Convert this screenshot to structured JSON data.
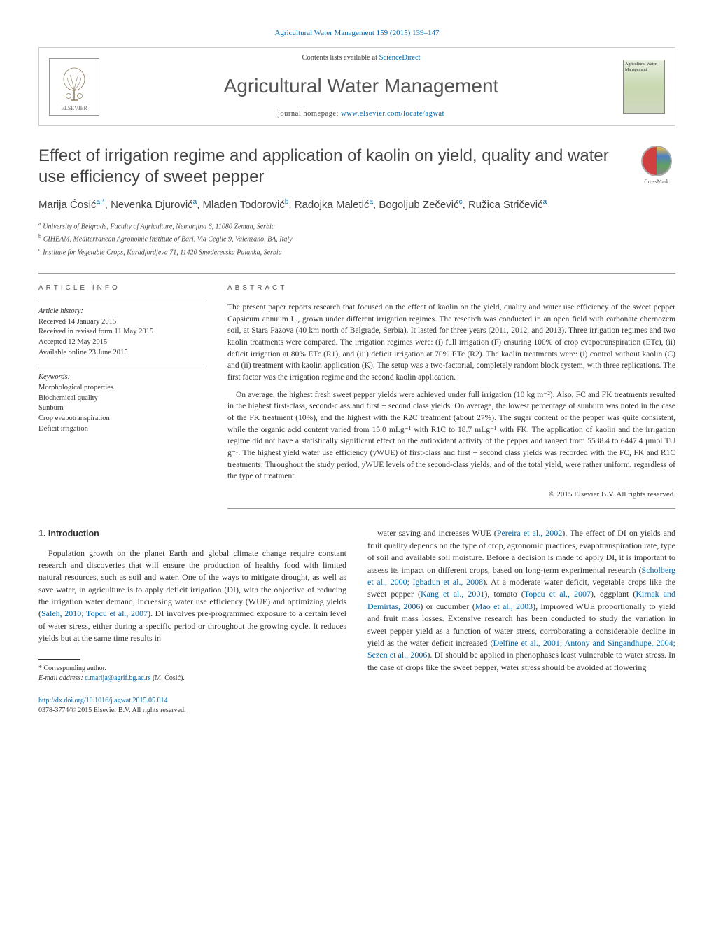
{
  "journal_ref": "Agricultural Water Management 159 (2015) 139–147",
  "header": {
    "contents_prefix": "Contents lists available at ",
    "contents_link": "ScienceDirect",
    "journal_name": "Agricultural Water Management",
    "homepage_prefix": "journal homepage: ",
    "homepage_url": "www.elsevier.com/locate/agwat",
    "publisher": "ELSEVIER",
    "cover_text": "Agricultural Water Management"
  },
  "title": "Effect of irrigation regime and application of kaolin on yield, quality and water use efficiency of sweet pepper",
  "crossmark": "CrossMark",
  "authors": "Marija Ćosić",
  "author_sup1": "a,",
  "author_star": "*",
  "authors2": ", Nevenka Djurović",
  "author_sup2": "a",
  "authors3": ", Mladen Todorović",
  "author_sup3": "b",
  "authors4": ", Radojka Maletić",
  "author_sup4": "a",
  "authors5": ", Bogoljub Zečević",
  "author_sup5": "c",
  "authors6": ", Ružica Stričević",
  "author_sup6": "a",
  "affiliations": {
    "a": "University of Belgrade, Faculty of Agriculture, Nemanjina 6, 11080 Zemun, Serbia",
    "b": "CIHEAM, Mediterranean Agronomic Institute of Bari, Via Ceglie 9, Valenzano, BA, Italy",
    "c": "Institute for Vegetable Crops, Karadjordjeva 71, 11420 Smederevska Palanka, Serbia"
  },
  "article_info": {
    "label": "article info",
    "history_heading": "Article history:",
    "received": "Received 14 January 2015",
    "revised": "Received in revised form 11 May 2015",
    "accepted": "Accepted 12 May 2015",
    "online": "Available online 23 June 2015",
    "keywords_heading": "Keywords:",
    "keywords": [
      "Morphological properties",
      "Biochemical quality",
      "Sunburn",
      "Crop evapotranspiration",
      "Deficit irrigation"
    ]
  },
  "abstract": {
    "label": "abstract",
    "p1": "The present paper reports research that focused on the effect of kaolin on the yield, quality and water use efficiency of the sweet pepper Capsicum annuum L., grown under different irrigation regimes. The research was conducted in an open field with carbonate chernozem soil, at Stara Pazova (40 km north of Belgrade, Serbia). It lasted for three years (2011, 2012, and 2013). Three irrigation regimes and two kaolin treatments were compared. The irrigation regimes were: (i) full irrigation (F) ensuring 100% of crop evapotranspiration (ETc), (ii) deficit irrigation at 80% ETc (R1), and (iii) deficit irrigation at 70% ETc (R2). The kaolin treatments were: (i) control without kaolin (C) and (ii) treatment with kaolin application (K). The setup was a two-factorial, completely random block system, with three replications. The first factor was the irrigation regime and the second kaolin application.",
    "p2": "On average, the highest fresh sweet pepper yields were achieved under full irrigation (10 kg m⁻²). Also, FC and FK treatments resulted in the highest first-class, second-class and first + second class yields. On average, the lowest percentage of sunburn was noted in the case of the FK treatment (10%), and the highest with the R2C treatment (about 27%). The sugar content of the pepper was quite consistent, while the organic acid content varied from 15.0 mLg⁻¹ with R1C to 18.7 mLg⁻¹ with FK. The application of kaolin and the irrigation regime did not have a statistically significant effect on the antioxidant activity of the pepper and ranged from 5538.4 to 6447.4 µmol TU g⁻¹. The highest yield water use efficiency (yWUE) of first-class and first + second class yields was recorded with the FC, FK and R1C treatments. Throughout the study period, yWUE levels of the second-class yields, and of the total yield, were rather uniform, regardless of the type of treatment.",
    "copyright": "© 2015 Elsevier B.V. All rights reserved."
  },
  "body": {
    "intro_heading": "1. Introduction",
    "col1": "Population growth on the planet Earth and global climate change require constant research and discoveries that will ensure the production of healthy food with limited natural resources, such as soil and water. One of the ways to mitigate drought, as well as save water, in agriculture is to apply deficit irrigation (DI), with the objective of reducing the irrigation water demand, increasing water use efficiency (WUE) and optimizing yields (Saleh, 2010; Topcu et al., 2007). DI involves pre-programmed exposure to a certain level of water stress, either during a specific period or throughout the growing cycle. It reduces yields but at the same time results in",
    "col2": "water saving and increases WUE (Pereira et al., 2002). The effect of DI on yields and fruit quality depends on the type of crop, agronomic practices, evapotranspiration rate, type of soil and available soil moisture. Before a decision is made to apply DI, it is important to assess its impact on different crops, based on long-term experimental research (Scholberg et al., 2000; Igbadun et al., 2008). At a moderate water deficit, vegetable crops like the sweet pepper (Kang et al., 2001), tomato (Topcu et al., 2007), eggplant (Kirnak and Demirtas, 2006) or cucumber (Mao et al., 2003), improved WUE proportionally to yield and fruit mass losses. Extensive research has been conducted to study the variation in sweet pepper yield as a function of water stress, corroborating a considerable decline in yield as the water deficit increased (Delfine et al., 2001; Antony and Singandhupe, 2004; Sezen et al., 2006). DI should be applied in phenophases least vulnerable to water stress. In the case of crops like the sweet pepper, water stress should be avoided at flowering"
  },
  "footnote": {
    "corr": "Corresponding author.",
    "email_label": "E-mail address: ",
    "email": "c.marija@agrif.bg.ac.rs",
    "email_suffix": " (M. Ćosić)."
  },
  "footer": {
    "doi": "http://dx.doi.org/10.1016/j.agwat.2015.05.014",
    "issn": "0378-3774/© 2015 Elsevier B.V. All rights reserved."
  },
  "colors": {
    "link": "#0066aa",
    "rule": "#999999",
    "text": "#333333",
    "heading": "#444444"
  }
}
